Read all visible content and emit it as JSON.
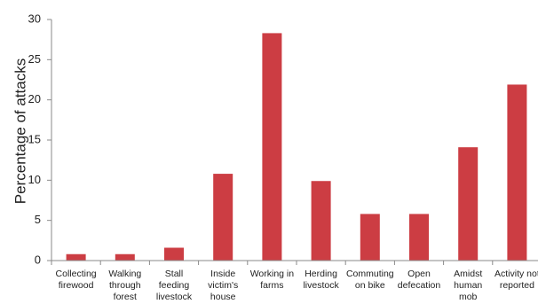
{
  "chart_data": {
    "type": "bar",
    "title": "",
    "xlabel": "",
    "ylabel": "Percentage of attacks",
    "ylim": [
      0,
      30
    ],
    "yticks": [
      0,
      5,
      10,
      15,
      20,
      25,
      30
    ],
    "grid": false,
    "legend": "none",
    "bar_color": "#cc3d43",
    "categories": [
      "Collecting firewood",
      "Walking through forest",
      "Stall feeding livestock",
      "Inside victim's house",
      "Working in farms",
      "Herding livestock",
      "Commuting on bike",
      "Open defecation",
      "Amidst human mob",
      "Activity not reported"
    ],
    "category_lines": [
      [
        "Collecting",
        "firewood"
      ],
      [
        "Walking",
        "through",
        "forest"
      ],
      [
        "Stall",
        "feeding",
        "livestock"
      ],
      [
        "Inside",
        "victim's",
        "house"
      ],
      [
        "Working in",
        "farms"
      ],
      [
        "Herding",
        "livestock"
      ],
      [
        "Commuting",
        "on bike"
      ],
      [
        "Open",
        "defecation"
      ],
      [
        "Amidst",
        "human",
        "mob"
      ],
      [
        "Activity not",
        "reported"
      ]
    ],
    "values": [
      0.8,
      0.8,
      1.6,
      10.8,
      28.3,
      9.9,
      5.8,
      5.8,
      14.1,
      21.9
    ]
  }
}
